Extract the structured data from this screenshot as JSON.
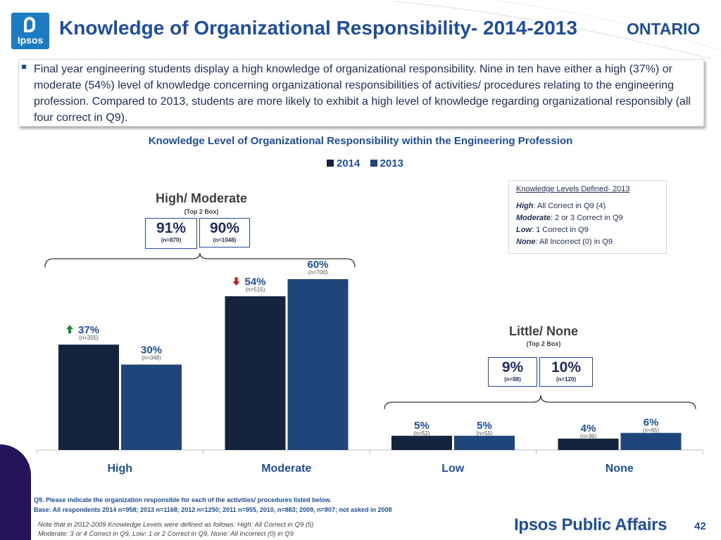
{
  "header": {
    "logo_text": "Ipsos",
    "title": "Knowledge of Organizational Responsibility- 2014-2013",
    "region": "ONTARIO"
  },
  "callout": {
    "text": "Final year engineering students display a high knowledge of organizational responsibility.  Nine in ten have either a high (37%) or moderate (54%) level of knowledge concerning organizational responsibilities of activities/ procedures relating to the engineering profession.  Compared to 2013, students are more likely to exhibit a high level of knowledge regarding organizational responsibly (all four correct in Q9)."
  },
  "definitions": {
    "title": "Knowledge Levels Defined- 2013",
    "items": [
      {
        "term": "High",
        "text": ": All Correct in Q9 (4)"
      },
      {
        "term": "Moderate",
        "text": ": 2 or 3 Correct in Q9"
      },
      {
        "term": "Low",
        "text": ": 1 Correct in Q9"
      },
      {
        "term": "None",
        "text": ": All Incorrect (0) in Q9"
      }
    ]
  },
  "groups": {
    "high_moderate": {
      "heading": "High/ Moderate",
      "sub": "(Top 2 Box)",
      "box_2014": {
        "pct": "91%",
        "n": "(n=870)"
      },
      "box_2013": {
        "pct": "90%",
        "n": "(n=1048)"
      }
    },
    "little_none": {
      "heading": "Little/ None",
      "sub": "(Top 2 Box)",
      "box_2014": {
        "pct": "9%",
        "n": "(n=88)"
      },
      "box_2013": {
        "pct": "10%",
        "n": "(n=120)"
      }
    }
  },
  "colors": {
    "series_2014": "#14243f",
    "series_2013": "#1f467a",
    "up_arrow": "#1a8a2e",
    "down_arrow": "#c01818"
  },
  "chart_data": {
    "type": "bar",
    "title": "Knowledge Level of Organizational Responsibility within the Engineering Profession",
    "categories": [
      "High",
      "Moderate",
      "Low",
      "None"
    ],
    "series": [
      {
        "name": "2014",
        "values": [
          37,
          54,
          5,
          4
        ],
        "labels": [
          "37%",
          "54%",
          "5%",
          "4%"
        ],
        "n": [
          "(n=355)",
          "(n=515)",
          "(n=52)",
          "(n=36)"
        ]
      },
      {
        "name": "2013",
        "values": [
          30,
          60,
          5,
          6
        ],
        "labels": [
          "30%",
          "60%",
          "5%",
          "6%"
        ],
        "n": [
          "(n=348)",
          "(n=700)",
          "(n=55)",
          "(n=65)"
        ]
      }
    ],
    "significance": [
      {
        "category": "High",
        "series": "2014",
        "direction": "up"
      },
      {
        "category": "Moderate",
        "series": "2014",
        "direction": "down"
      }
    ],
    "legend": "top-center",
    "grid": false
  },
  "footer": {
    "question": "Q9. Please indicate the organization responsible for each of the activities/ procedures listed below.",
    "base": "Base:  All respondents 2014 n=958; 2013 n=1168; 2012 n=1250; 2011 n=955, 2010, n=883; 2009, n=907; not asked in 2008",
    "note_line1": "Note that in 2012-2009 Knowledge Levels were defined as follows: High: All Correct in Q9 (5)",
    "note_line2": "Moderate: 3 or 4 Correct in Q9, Low: 1 or 2 Correct in Q9, None: All Incorrect (0) in Q9",
    "brand": "Ipsos Public Affairs",
    "page_number": "42"
  }
}
